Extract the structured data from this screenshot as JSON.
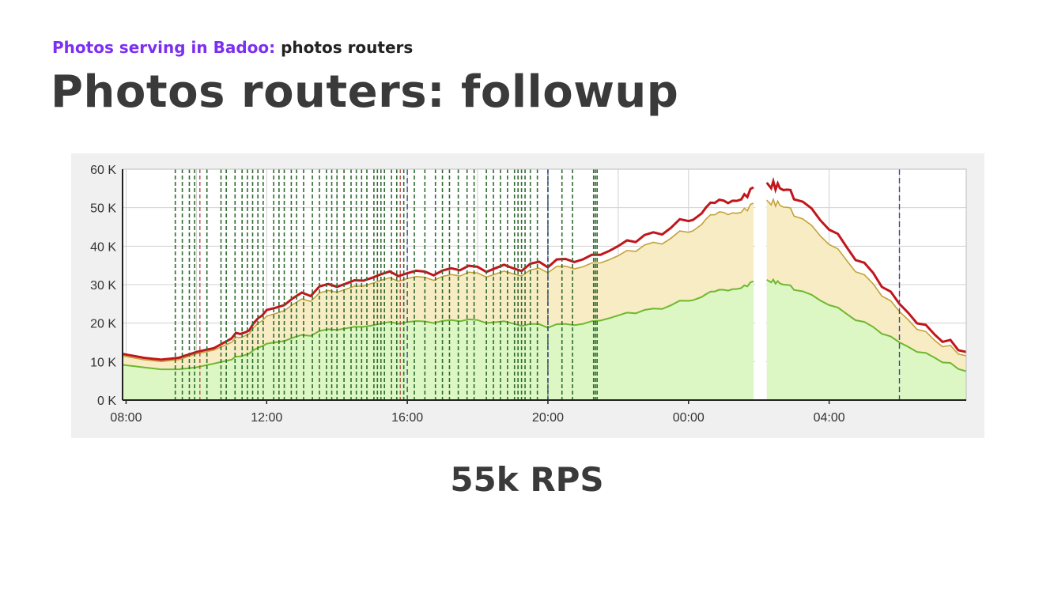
{
  "header": {
    "section": "Photos serving in Badoo:",
    "subsection": "photos routers",
    "title": "Photos routers: followup"
  },
  "caption": "55k RPS",
  "colors": {
    "section_accent": "#7b2ff2",
    "total_line": "#c0161b",
    "middle_line": "#c4a23a",
    "lower_line": "#6fb830",
    "upper_fill": "#f7ecc4",
    "lower_fill": "#dcf7c4",
    "event_green": "#2f6b2f",
    "event_red": "#b05050",
    "event_blue": "#3d4a8a"
  },
  "chart_data": {
    "type": "area",
    "title": "",
    "xlabel": "",
    "ylabel": "",
    "x_unit": "hours since 08:00 (axis wraps past midnight)",
    "xlim": [
      -0.1,
      23.9
    ],
    "ylim": [
      0,
      60000
    ],
    "grid": true,
    "legend": "none",
    "x_ticks": [
      "08:00",
      "12:00",
      "16:00",
      "20:00",
      "00:00",
      "04:00"
    ],
    "y_ticks": [
      "0 K",
      "10 K",
      "20 K",
      "30 K",
      "40 K",
      "50 K",
      "60 K"
    ],
    "gap": [
      17.9,
      18.2
    ],
    "series": [
      {
        "key": "total",
        "x": [
          -0.4,
          0.5,
          1.0,
          1.5,
          2.0,
          2.5,
          3.0,
          3.5,
          4.0,
          5.0,
          6.0,
          7.0,
          8.0,
          9.0,
          10.0,
          11.0,
          12.0,
          13.0,
          14.0,
          15.0,
          16.0,
          16.5,
          17.0,
          17.5,
          17.85,
          18.35,
          18.6,
          19.0,
          20.0,
          21.0,
          22.0,
          23.0,
          23.9
        ],
        "values": [
          12500,
          11000,
          10500,
          11000,
          12500,
          13500,
          16000,
          19000,
          23000,
          27000,
          30000,
          32000,
          33500,
          33500,
          34000,
          34500,
          35000,
          37000,
          40000,
          43000,
          47000,
          50000,
          51500,
          53000,
          54500,
          56000,
          55500,
          53000,
          45000,
          35000,
          25000,
          17000,
          12500
        ]
      },
      {
        "key": "middle",
        "x": [
          -0.4,
          0.5,
          1.0,
          1.5,
          2.0,
          2.5,
          3.0,
          3.5,
          4.0,
          5.0,
          6.0,
          7.0,
          8.0,
          9.0,
          10.0,
          11.0,
          12.0,
          13.0,
          14.0,
          15.0,
          16.0,
          16.5,
          17.0,
          17.5,
          17.85,
          18.35,
          18.6,
          19.0,
          20.0,
          21.0,
          22.0,
          23.0,
          23.9
        ],
        "values": [
          12000,
          10500,
          10000,
          10500,
          12000,
          13000,
          15000,
          18000,
          21500,
          25500,
          28500,
          30500,
          32000,
          32000,
          32500,
          33000,
          33500,
          35000,
          37500,
          40500,
          44000,
          47000,
          48500,
          49500,
          50500,
          51500,
          51000,
          48500,
          41000,
          32000,
          23000,
          15500,
          11500
        ]
      },
      {
        "key": "lower",
        "x": [
          -0.4,
          0.5,
          1.0,
          1.5,
          2.0,
          2.5,
          3.0,
          3.5,
          4.0,
          5.0,
          6.0,
          7.0,
          8.0,
          9.0,
          10.0,
          11.0,
          12.0,
          13.0,
          14.0,
          15.0,
          16.0,
          16.5,
          17.0,
          17.5,
          17.85,
          18.35,
          18.6,
          19.0,
          20.0,
          21.0,
          22.0,
          23.0,
          23.9
        ],
        "values": [
          9500,
          8500,
          8000,
          8000,
          8500,
          9500,
          10500,
          12500,
          14500,
          16500,
          18500,
          19500,
          20500,
          20500,
          20500,
          20000,
          19000,
          20000,
          22000,
          23500,
          26000,
          27500,
          28500,
          29500,
          30500,
          31000,
          30500,
          29000,
          25000,
          20000,
          15000,
          11000,
          7500
        ]
      }
    ],
    "event_lines": {
      "green": [
        1.4,
        1.6,
        1.8,
        1.95,
        2.3,
        2.7,
        2.85,
        3.1,
        3.3,
        3.45,
        3.6,
        3.75,
        3.9,
        4.2,
        4.35,
        4.5,
        4.7,
        4.85,
        5.05,
        5.3,
        5.5,
        5.7,
        5.85,
        6.0,
        6.2,
        6.4,
        6.55,
        6.7,
        6.85,
        7.05,
        7.15,
        7.25,
        7.35,
        7.55,
        7.7,
        7.9,
        8.2,
        8.5,
        8.8,
        9.0,
        9.2,
        9.45,
        9.7,
        9.9,
        10.25,
        10.45,
        10.65,
        10.85,
        11.05,
        11.15,
        11.25,
        11.35,
        11.5,
        11.7,
        12.0,
        12.4,
        12.7,
        13.3,
        13.35,
        13.4
      ],
      "red": [
        2.1,
        7.8
      ],
      "blue": [
        8.0,
        12.0,
        22.0
      ]
    }
  }
}
